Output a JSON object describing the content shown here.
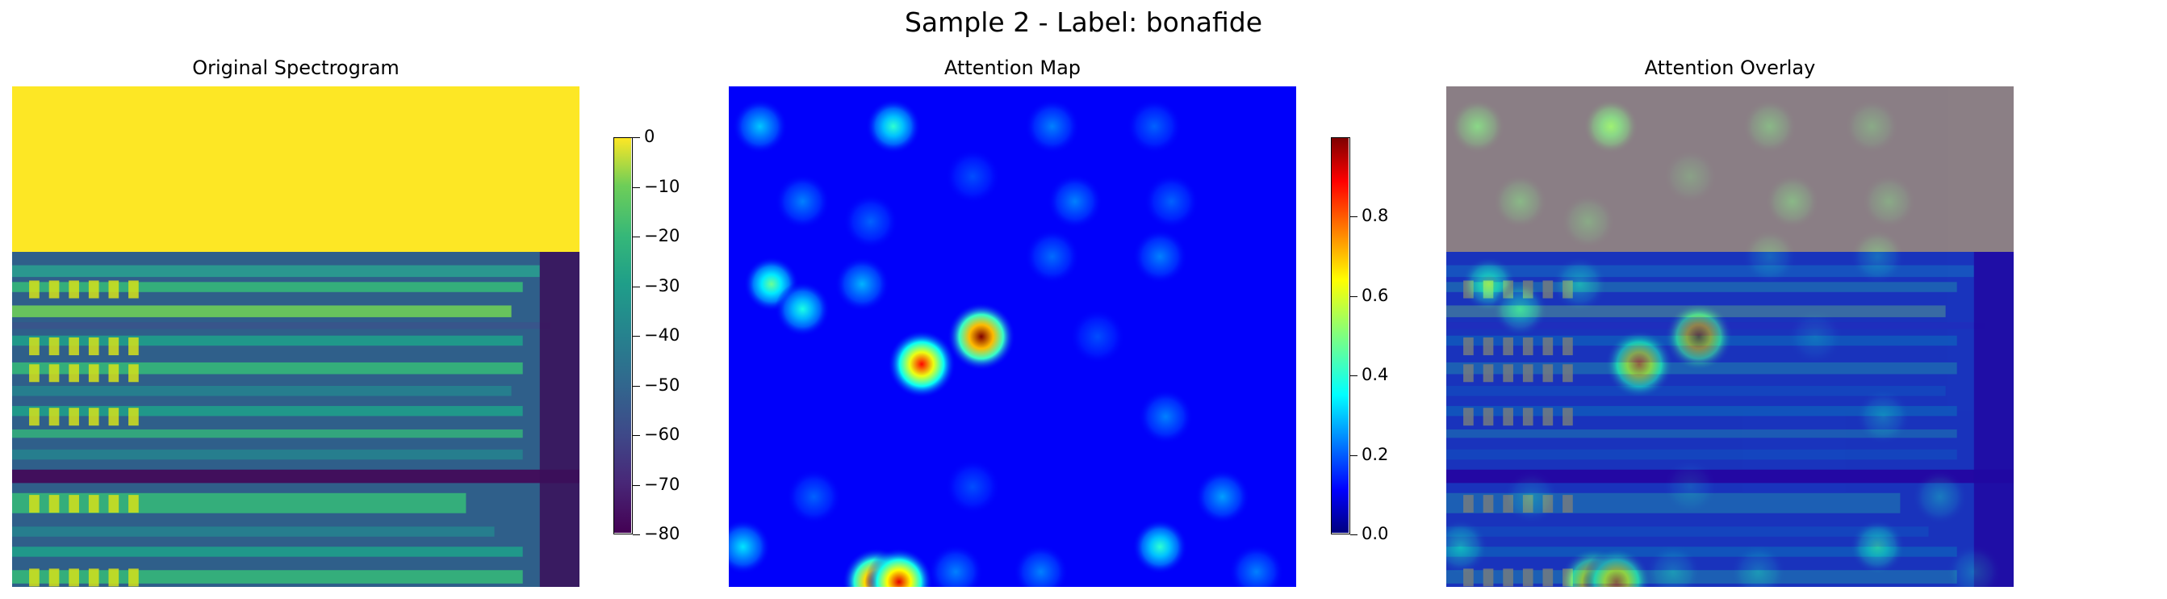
{
  "figure": {
    "suptitle": "Sample 2 - Label: bonafide"
  },
  "chart_data": [
    {
      "type": "heatmap",
      "title": "Original Spectrogram",
      "colormap": "viridis",
      "colorbar": {
        "range": [
          -80,
          0
        ],
        "ticks": [
          "0",
          "−10",
          "−20",
          "−30",
          "−40",
          "−50",
          "−60",
          "−70",
          "−80"
        ],
        "tick_values": [
          0,
          -10,
          -20,
          -30,
          -40,
          -50,
          -60,
          -70,
          -80
        ]
      },
      "axes": "off",
      "top_region_value": 0,
      "top_region_fraction": 0.33
    },
    {
      "type": "heatmap",
      "title": "Attention Map",
      "colormap": "jet",
      "colorbar": {
        "range": [
          0,
          1
        ],
        "ticks": [
          "0.0",
          "0.2",
          "0.4",
          "0.6",
          "0.8"
        ],
        "tick_values": [
          0.0,
          0.2,
          0.4,
          0.6,
          0.8
        ]
      },
      "axes": "off",
      "background_level": 0.12,
      "hotspots": [
        {
          "x": 0.055,
          "y": 0.08,
          "v": 0.32
        },
        {
          "x": 0.29,
          "y": 0.08,
          "v": 0.42
        },
        {
          "x": 0.57,
          "y": 0.08,
          "v": 0.25
        },
        {
          "x": 0.75,
          "y": 0.08,
          "v": 0.22
        },
        {
          "x": 0.13,
          "y": 0.23,
          "v": 0.25
        },
        {
          "x": 0.25,
          "y": 0.27,
          "v": 0.22
        },
        {
          "x": 0.43,
          "y": 0.18,
          "v": 0.2
        },
        {
          "x": 0.61,
          "y": 0.23,
          "v": 0.25
        },
        {
          "x": 0.78,
          "y": 0.23,
          "v": 0.22
        },
        {
          "x": 0.57,
          "y": 0.34,
          "v": 0.23
        },
        {
          "x": 0.76,
          "y": 0.34,
          "v": 0.25
        },
        {
          "x": 0.075,
          "y": 0.395,
          "v": 0.48
        },
        {
          "x": 0.13,
          "y": 0.445,
          "v": 0.4
        },
        {
          "x": 0.235,
          "y": 0.395,
          "v": 0.3
        },
        {
          "x": 0.445,
          "y": 0.5,
          "v": 1.0
        },
        {
          "x": 0.34,
          "y": 0.555,
          "v": 0.87
        },
        {
          "x": 0.65,
          "y": 0.5,
          "v": 0.2
        },
        {
          "x": 0.77,
          "y": 0.66,
          "v": 0.25
        },
        {
          "x": 0.15,
          "y": 0.82,
          "v": 0.22
        },
        {
          "x": 0.43,
          "y": 0.8,
          "v": 0.2
        },
        {
          "x": 0.87,
          "y": 0.82,
          "v": 0.28
        },
        {
          "x": 0.025,
          "y": 0.92,
          "v": 0.35
        },
        {
          "x": 0.76,
          "y": 0.92,
          "v": 0.42
        },
        {
          "x": 0.26,
          "y": 0.99,
          "v": 0.95
        },
        {
          "x": 0.3,
          "y": 0.99,
          "v": 0.9
        },
        {
          "x": 0.4,
          "y": 0.97,
          "v": 0.25
        },
        {
          "x": 0.55,
          "y": 0.97,
          "v": 0.25
        },
        {
          "x": 0.93,
          "y": 0.97,
          "v": 0.25
        }
      ]
    },
    {
      "type": "heatmap",
      "title": "Attention Overlay",
      "description_of_layers": [
        "Original Spectrogram",
        "Attention Map"
      ],
      "axes": "off"
    }
  ]
}
